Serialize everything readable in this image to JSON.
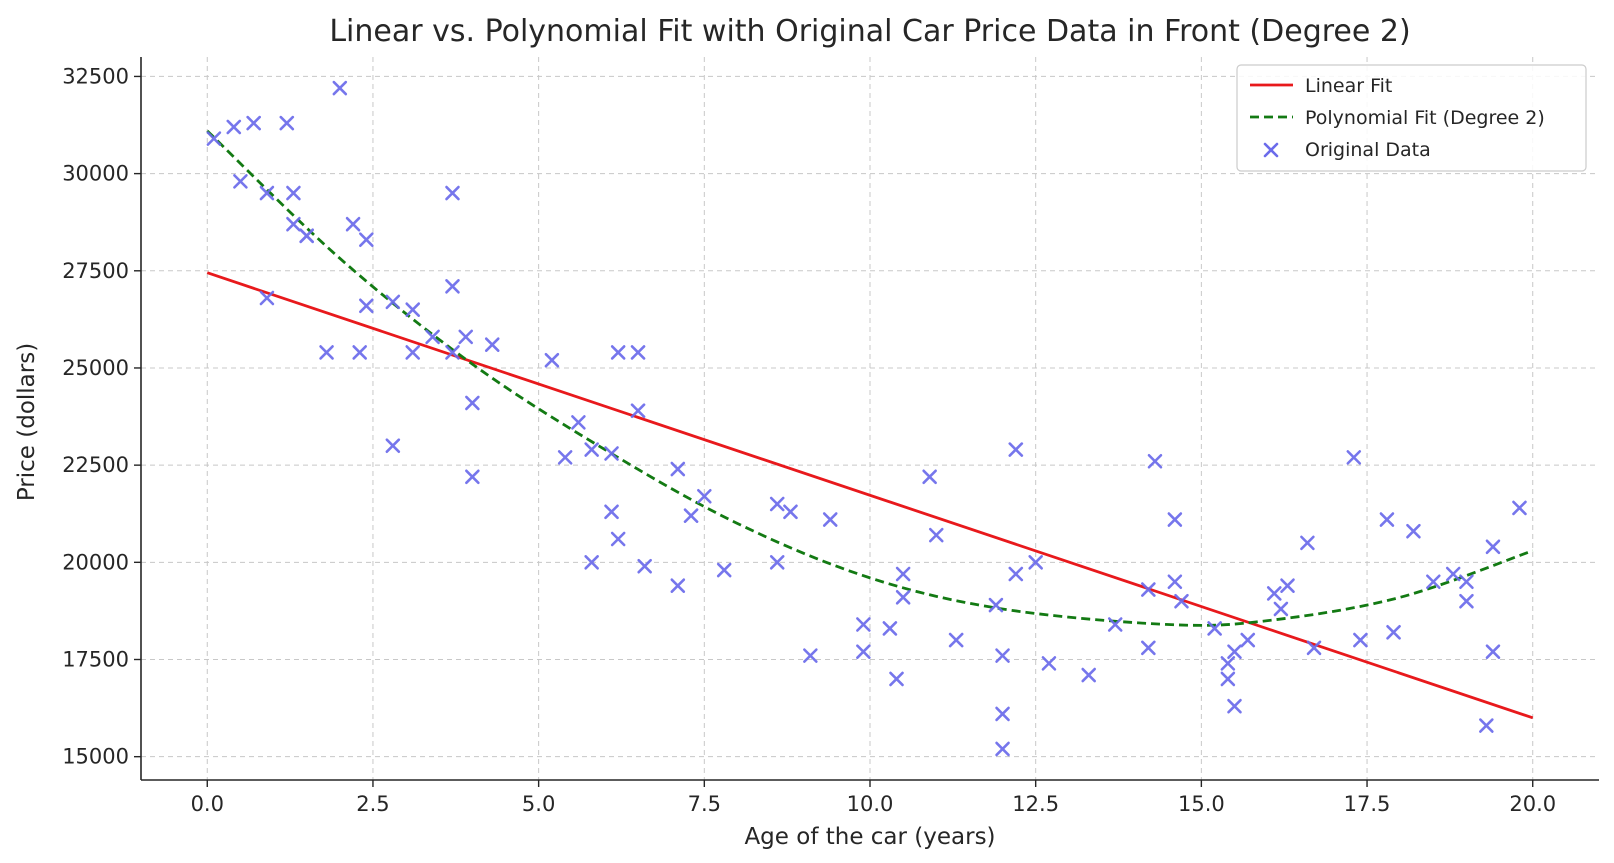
{
  "chart_data": {
    "type": "scatter",
    "title": "Linear vs. Polynomial Fit with Original Car Price Data in Front (Degree 2)",
    "xlabel": "Age of the car (years)",
    "ylabel": "Price (dollars)",
    "xlim": [
      -1.0,
      21.0
    ],
    "ylim": [
      14400,
      33000
    ],
    "xticks": [
      0.0,
      2.5,
      5.0,
      7.5,
      10.0,
      12.5,
      15.0,
      17.5,
      20.0
    ],
    "xtick_labels": [
      "0.0",
      "2.5",
      "5.0",
      "7.5",
      "10.0",
      "12.5",
      "15.0",
      "17.5",
      "20.0"
    ],
    "yticks": [
      15000,
      17500,
      20000,
      22500,
      25000,
      27500,
      30000,
      32500
    ],
    "ytick_labels": [
      "15000",
      "17500",
      "20000",
      "22500",
      "25000",
      "27500",
      "30000",
      "32500"
    ],
    "grid": true,
    "legend_position": "top-right",
    "series": [
      {
        "name": "Linear Fit",
        "kind": "line",
        "color": "#e8191c",
        "style": "solid",
        "x": [
          0.0,
          20.0
        ],
        "y": [
          27450,
          16000
        ]
      },
      {
        "name": "Polynomial Fit (Degree 2)",
        "kind": "curve",
        "color": "#137a13",
        "style": "dashed",
        "x": [
          0.0,
          2.0,
          4.0,
          6.0,
          8.0,
          10.0,
          12.0,
          14.5,
          16.0,
          18.0,
          20.0
        ],
        "y": [
          31100,
          27820,
          25100,
          22900,
          21000,
          19600,
          18800,
          18400,
          18500,
          19100,
          20300
        ]
      },
      {
        "name": "Original Data",
        "kind": "scatter",
        "color": "#6b6beb",
        "marker": "x",
        "points": [
          [
            0.1,
            30900
          ],
          [
            0.4,
            31200
          ],
          [
            0.5,
            29800
          ],
          [
            0.7,
            31300
          ],
          [
            0.9,
            29500
          ],
          [
            0.9,
            26800
          ],
          [
            1.2,
            31300
          ],
          [
            1.3,
            29500
          ],
          [
            1.3,
            28700
          ],
          [
            1.5,
            28400
          ],
          [
            1.5,
            28400
          ],
          [
            1.8,
            25400
          ],
          [
            2.0,
            32200
          ],
          [
            2.2,
            28700
          ],
          [
            2.3,
            25400
          ],
          [
            2.4,
            28300
          ],
          [
            2.4,
            26600
          ],
          [
            2.8,
            26700
          ],
          [
            2.8,
            23000
          ],
          [
            3.1,
            26500
          ],
          [
            3.1,
            25400
          ],
          [
            3.4,
            25800
          ],
          [
            3.7,
            29500
          ],
          [
            3.7,
            27100
          ],
          [
            3.7,
            25400
          ],
          [
            3.9,
            25800
          ],
          [
            4.0,
            24100
          ],
          [
            4.0,
            22200
          ],
          [
            4.3,
            25600
          ],
          [
            5.2,
            25200
          ],
          [
            5.4,
            22700
          ],
          [
            5.6,
            23600
          ],
          [
            5.8,
            22900
          ],
          [
            5.8,
            20000
          ],
          [
            6.1,
            22800
          ],
          [
            6.1,
            21300
          ],
          [
            6.2,
            20600
          ],
          [
            6.2,
            25400
          ],
          [
            6.5,
            25400
          ],
          [
            6.5,
            23900
          ],
          [
            6.6,
            19900
          ],
          [
            7.1,
            22400
          ],
          [
            7.1,
            19400
          ],
          [
            7.3,
            21200
          ],
          [
            7.5,
            21700
          ],
          [
            7.8,
            19800
          ],
          [
            8.6,
            21500
          ],
          [
            8.6,
            20000
          ],
          [
            8.8,
            21300
          ],
          [
            9.1,
            17600
          ],
          [
            9.4,
            21100
          ],
          [
            9.9,
            18400
          ],
          [
            9.9,
            17700
          ],
          [
            10.3,
            18300
          ],
          [
            10.4,
            17000
          ],
          [
            10.5,
            19700
          ],
          [
            10.5,
            19100
          ],
          [
            10.9,
            22200
          ],
          [
            11.0,
            20700
          ],
          [
            11.3,
            18000
          ],
          [
            11.9,
            18900
          ],
          [
            12.0,
            16100
          ],
          [
            12.0,
            15200
          ],
          [
            12.0,
            17600
          ],
          [
            12.2,
            22900
          ],
          [
            12.2,
            19700
          ],
          [
            12.5,
            20000
          ],
          [
            12.7,
            17400
          ],
          [
            13.3,
            17100
          ],
          [
            13.7,
            18400
          ],
          [
            14.2,
            19300
          ],
          [
            14.2,
            17800
          ],
          [
            14.3,
            22600
          ],
          [
            14.6,
            21100
          ],
          [
            14.6,
            19500
          ],
          [
            14.7,
            19000
          ],
          [
            15.2,
            18300
          ],
          [
            15.4,
            17400
          ],
          [
            15.4,
            17000
          ],
          [
            15.5,
            17700
          ],
          [
            15.5,
            16300
          ],
          [
            15.7,
            18000
          ],
          [
            16.1,
            19200
          ],
          [
            16.2,
            18800
          ],
          [
            16.3,
            19400
          ],
          [
            16.6,
            20500
          ],
          [
            16.7,
            17800
          ],
          [
            17.3,
            22700
          ],
          [
            17.4,
            18000
          ],
          [
            17.8,
            21100
          ],
          [
            17.9,
            18200
          ],
          [
            18.2,
            20800
          ],
          [
            18.5,
            19500
          ],
          [
            18.8,
            19700
          ],
          [
            19.0,
            19500
          ],
          [
            19.0,
            19000
          ],
          [
            19.3,
            15800
          ],
          [
            19.4,
            20400
          ],
          [
            19.4,
            17700
          ],
          [
            19.8,
            21400
          ]
        ]
      }
    ]
  }
}
